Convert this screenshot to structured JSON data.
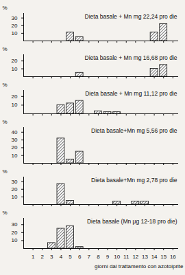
{
  "chart_data": [
    {
      "type": "bar",
      "title": "Dieta basale + Mn mg 22,24 pro die",
      "ylabel": "%",
      "x": [
        5,
        6,
        14,
        15
      ],
      "values": [
        11,
        5,
        11,
        22
      ],
      "xlim": [
        0,
        16.6
      ],
      "xticks": [
        1,
        2,
        3,
        4,
        5,
        6,
        7,
        8,
        9,
        10,
        11,
        12,
        13,
        14,
        15,
        16
      ],
      "ylim": [
        0,
        36
      ],
      "yticks": [
        10,
        20,
        30
      ],
      "color": "#555555",
      "tick_labels": "y"
    },
    {
      "type": "bar",
      "title": "Dieta basale + Mn mg 16,68 pro die",
      "ylabel": "%",
      "x": [
        6,
        14,
        15
      ],
      "values": [
        5,
        10,
        15
      ],
      "xlim": [
        0,
        16.6
      ],
      "xticks": [
        1,
        2,
        3,
        4,
        5,
        6,
        7,
        8,
        9,
        10,
        11,
        12,
        13,
        14,
        15,
        16
      ],
      "ylim": [
        0,
        28
      ],
      "yticks": [
        10,
        20
      ],
      "color": "#555555",
      "tick_labels": "y"
    },
    {
      "type": "bar",
      "title": "Dieta basale + Mn mg 11,12 pro die",
      "ylabel": "%",
      "x": [
        4,
        5,
        6,
        8,
        9,
        10
      ],
      "values": [
        10,
        12,
        15,
        3,
        2,
        2
      ],
      "xlim": [
        0,
        16.6
      ],
      "xticks": [
        1,
        2,
        3,
        4,
        5,
        6,
        7,
        8,
        9,
        10,
        11,
        12,
        13,
        14,
        15,
        16
      ],
      "ylim": [
        0,
        27
      ],
      "yticks": [
        10,
        20
      ],
      "color": "#555555",
      "tick_labels": "y"
    },
    {
      "type": "bar",
      "title": "Dieta basale+Mn mg 5,56 pro die",
      "ylabel": "%",
      "x": [
        4,
        5,
        6
      ],
      "values": [
        32,
        5,
        15
      ],
      "xlim": [
        0,
        16.6
      ],
      "xticks": [
        1,
        2,
        3,
        4,
        5,
        6,
        7,
        8,
        9,
        10,
        11,
        12,
        13,
        14,
        15,
        16
      ],
      "ylim": [
        0,
        46
      ],
      "yticks": [
        10,
        20,
        30,
        40
      ],
      "color": "#555555",
      "tick_labels": "y"
    },
    {
      "type": "bar",
      "title": "Dieta basale+Mn mg 2,78 pro die",
      "ylabel": "%",
      "x": [
        4,
        5,
        10,
        12,
        13
      ],
      "values": [
        27,
        5,
        4,
        4,
        4
      ],
      "xlim": [
        0,
        16.6
      ],
      "xticks": [
        1,
        2,
        3,
        4,
        5,
        6,
        7,
        8,
        9,
        10,
        11,
        12,
        13,
        14,
        15,
        16
      ],
      "ylim": [
        0,
        36
      ],
      "yticks": [
        10,
        20,
        30
      ],
      "color": "#555555",
      "tick_labels": "y"
    },
    {
      "type": "bar",
      "title": "Dieta basale (Mn μg 12-18 pro die)",
      "ylabel": "%",
      "xlabel": "giorni dal trattamento con azotoiprite",
      "x": [
        3,
        4,
        5,
        6
      ],
      "values": [
        7,
        25,
        28,
        2
      ],
      "xlim": [
        0,
        16.6
      ],
      "xticks": [
        1,
        2,
        3,
        4,
        5,
        6,
        7,
        8,
        9,
        10,
        11,
        12,
        13,
        14,
        15,
        16
      ],
      "ylim": [
        0,
        38
      ],
      "yticks": [
        10,
        20,
        30
      ],
      "color": "#555555"
    }
  ]
}
